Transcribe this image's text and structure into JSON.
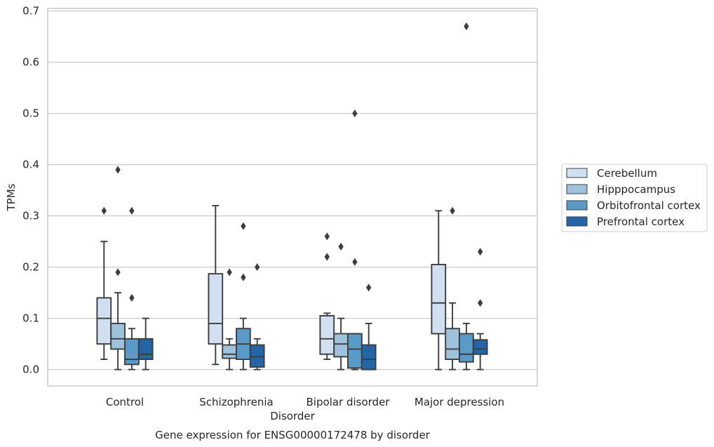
{
  "chart_data": {
    "type": "box",
    "title": "",
    "caption": "Gene expression for ENSG00000172478 by disorder",
    "xlabel": "Disorder",
    "ylabel": "TPMs",
    "ylim": [
      -0.032,
      0.705
    ],
    "yticks": [
      "0.0",
      "0.1",
      "0.2",
      "0.3",
      "0.4",
      "0.5",
      "0.6",
      "0.7"
    ],
    "grid": true,
    "legend_position": "right",
    "categories": [
      "Control",
      "Schizophrenia",
      "Bipolar disorder",
      "Major depression"
    ],
    "series": [
      {
        "name": "Cerebellum",
        "color": "#d1e0f0",
        "boxes": [
          {
            "whisker_low": 0.02,
            "q1": 0.05,
            "median": 0.1,
            "q3": 0.14,
            "whisker_high": 0.25,
            "outliers": [
              0.31
            ]
          },
          {
            "whisker_low": 0.01,
            "q1": 0.05,
            "median": 0.09,
            "q3": 0.187,
            "whisker_high": 0.32,
            "outliers": []
          },
          {
            "whisker_low": 0.02,
            "q1": 0.03,
            "median": 0.06,
            "q3": 0.105,
            "whisker_high": 0.11,
            "outliers": [
              0.22,
              0.26
            ]
          },
          {
            "whisker_low": 0.0,
            "q1": 0.07,
            "median": 0.13,
            "q3": 0.205,
            "whisker_high": 0.31,
            "outliers": []
          }
        ]
      },
      {
        "name": "Hipppocampus",
        "color": "#9ec2db",
        "boxes": [
          {
            "whisker_low": 0.0,
            "q1": 0.04,
            "median": 0.06,
            "q3": 0.09,
            "whisker_high": 0.15,
            "outliers": [
              0.19,
              0.39
            ]
          },
          {
            "whisker_low": 0.0,
            "q1": 0.022,
            "median": 0.03,
            "q3": 0.048,
            "whisker_high": 0.06,
            "outliers": [
              0.19
            ]
          },
          {
            "whisker_low": 0.0,
            "q1": 0.025,
            "median": 0.05,
            "q3": 0.07,
            "whisker_high": 0.1,
            "outliers": [
              0.24
            ]
          },
          {
            "whisker_low": 0.0,
            "q1": 0.02,
            "median": 0.04,
            "q3": 0.08,
            "whisker_high": 0.13,
            "outliers": [
              0.31
            ]
          }
        ]
      },
      {
        "name": "Orbitofrontal cortex",
        "color": "#5a9ac8",
        "boxes": [
          {
            "whisker_low": 0.0,
            "q1": 0.01,
            "median": 0.02,
            "q3": 0.06,
            "whisker_high": 0.08,
            "outliers": [
              0.14,
              0.31
            ]
          },
          {
            "whisker_low": 0.0,
            "q1": 0.02,
            "median": 0.05,
            "q3": 0.08,
            "whisker_high": 0.1,
            "outliers": [
              0.18,
              0.28
            ]
          },
          {
            "whisker_low": 0.0,
            "q1": 0.003,
            "median": 0.04,
            "q3": 0.07,
            "whisker_high": 0.07,
            "outliers": [
              0.21,
              0.5
            ]
          },
          {
            "whisker_low": 0.0,
            "q1": 0.015,
            "median": 0.03,
            "q3": 0.07,
            "whisker_high": 0.09,
            "outliers": [
              0.67
            ]
          }
        ]
      },
      {
        "name": "Prefrontal cortex",
        "color": "#2465a6",
        "boxes": [
          {
            "whisker_low": 0.0,
            "q1": 0.02,
            "median": 0.03,
            "q3": 0.06,
            "whisker_high": 0.1,
            "outliers": []
          },
          {
            "whisker_low": 0.0,
            "q1": 0.005,
            "median": 0.025,
            "q3": 0.048,
            "whisker_high": 0.06,
            "outliers": [
              0.2
            ]
          },
          {
            "whisker_low": 0.0,
            "q1": 0.0,
            "median": 0.02,
            "q3": 0.048,
            "whisker_high": 0.09,
            "outliers": [
              0.16
            ]
          },
          {
            "whisker_low": 0.0,
            "q1": 0.03,
            "median": 0.04,
            "q3": 0.058,
            "whisker_high": 0.07,
            "outliers": [
              0.13,
              0.23
            ]
          }
        ]
      }
    ]
  }
}
